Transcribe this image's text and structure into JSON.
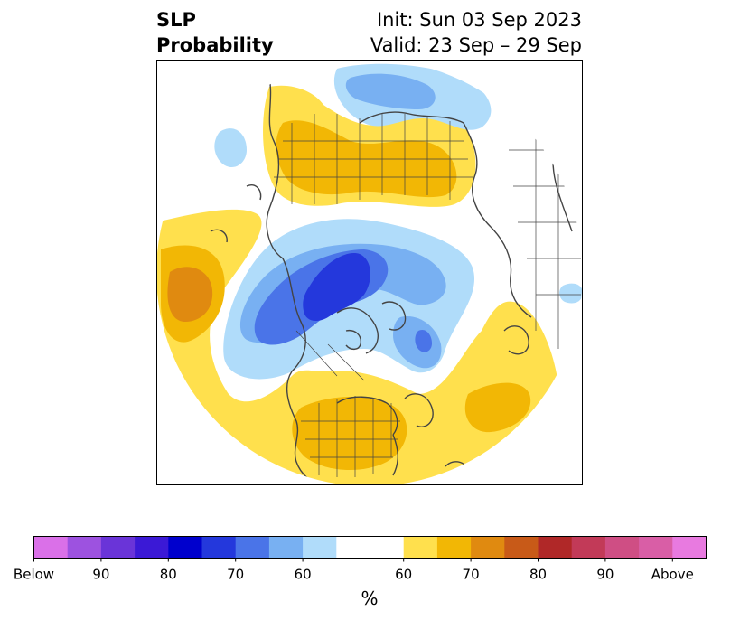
{
  "title": {
    "left_line1": "SLP",
    "left_line2": "Probability",
    "right_line1": "Init: Sun 03 Sep 2023",
    "right_line2": "Valid: 23 Sep – 29 Sep"
  },
  "colors": {
    "below": [
      "#da70e8",
      "#9d52e0",
      "#6a34d8",
      "#3b19d6",
      "#0000cd",
      "#2438dc",
      "#4a74e8",
      "#78b0f2",
      "#b0dcfa"
    ],
    "neutral": "#ffffff",
    "above": [
      "#ffe04d",
      "#f2b705",
      "#e08a10",
      "#c85a18",
      "#b02828",
      "#c23a58",
      "#cf4e84",
      "#d95ea6",
      "#e87ae0"
    ],
    "coastline": "#444444"
  },
  "colorbar": {
    "labels": [
      "Below",
      "90",
      "80",
      "70",
      "60",
      "60",
      "70",
      "80",
      "90",
      "Above"
    ],
    "unit": "%"
  }
}
